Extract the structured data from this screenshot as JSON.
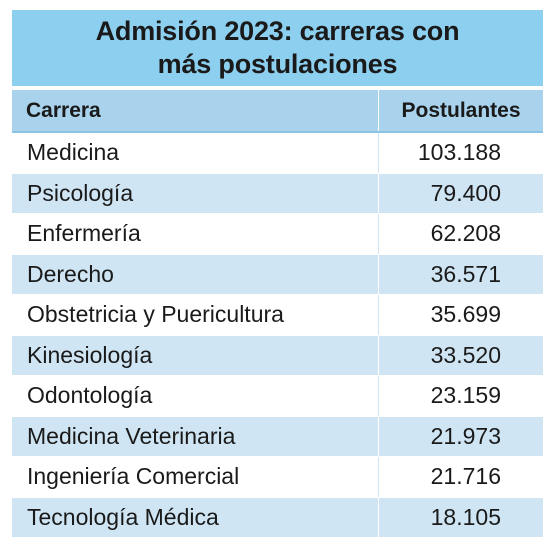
{
  "chart_data": {
    "type": "table",
    "title": "Admisión 2023: carreras con más postulaciones",
    "title_line1": "Admisión 2023: carreras con",
    "title_line2": "más postulaciones",
    "columns": [
      "Carrera",
      "Postulantes"
    ],
    "rows": [
      {
        "carrera": "Medicina",
        "postulantes": "103.188"
      },
      {
        "carrera": "Psicología",
        "postulantes": "79.400"
      },
      {
        "carrera": "Enfermería",
        "postulantes": "62.208"
      },
      {
        "carrera": "Derecho",
        "postulantes": "36.571"
      },
      {
        "carrera": "Obstetricia y Puericultura",
        "postulantes": "35.699"
      },
      {
        "carrera": "Kinesiología",
        "postulantes": "33.520"
      },
      {
        "carrera": "Odontología",
        "postulantes": "23.159"
      },
      {
        "carrera": "Medicina Veterinaria",
        "postulantes": "21.973"
      },
      {
        "carrera": "Ingeniería Comercial",
        "postulantes": "21.716"
      },
      {
        "carrera": "Tecnología Médica",
        "postulantes": "18.105"
      }
    ],
    "values": [
      103188,
      79400,
      62208,
      36571,
      35699,
      33520,
      23159,
      21973,
      21716,
      18105
    ]
  },
  "colors": {
    "title_bg": "#8ccfef",
    "header_bg": "#a9d3ec",
    "stripe_bg": "#cfe5f3",
    "text": "#1a1a1a"
  }
}
